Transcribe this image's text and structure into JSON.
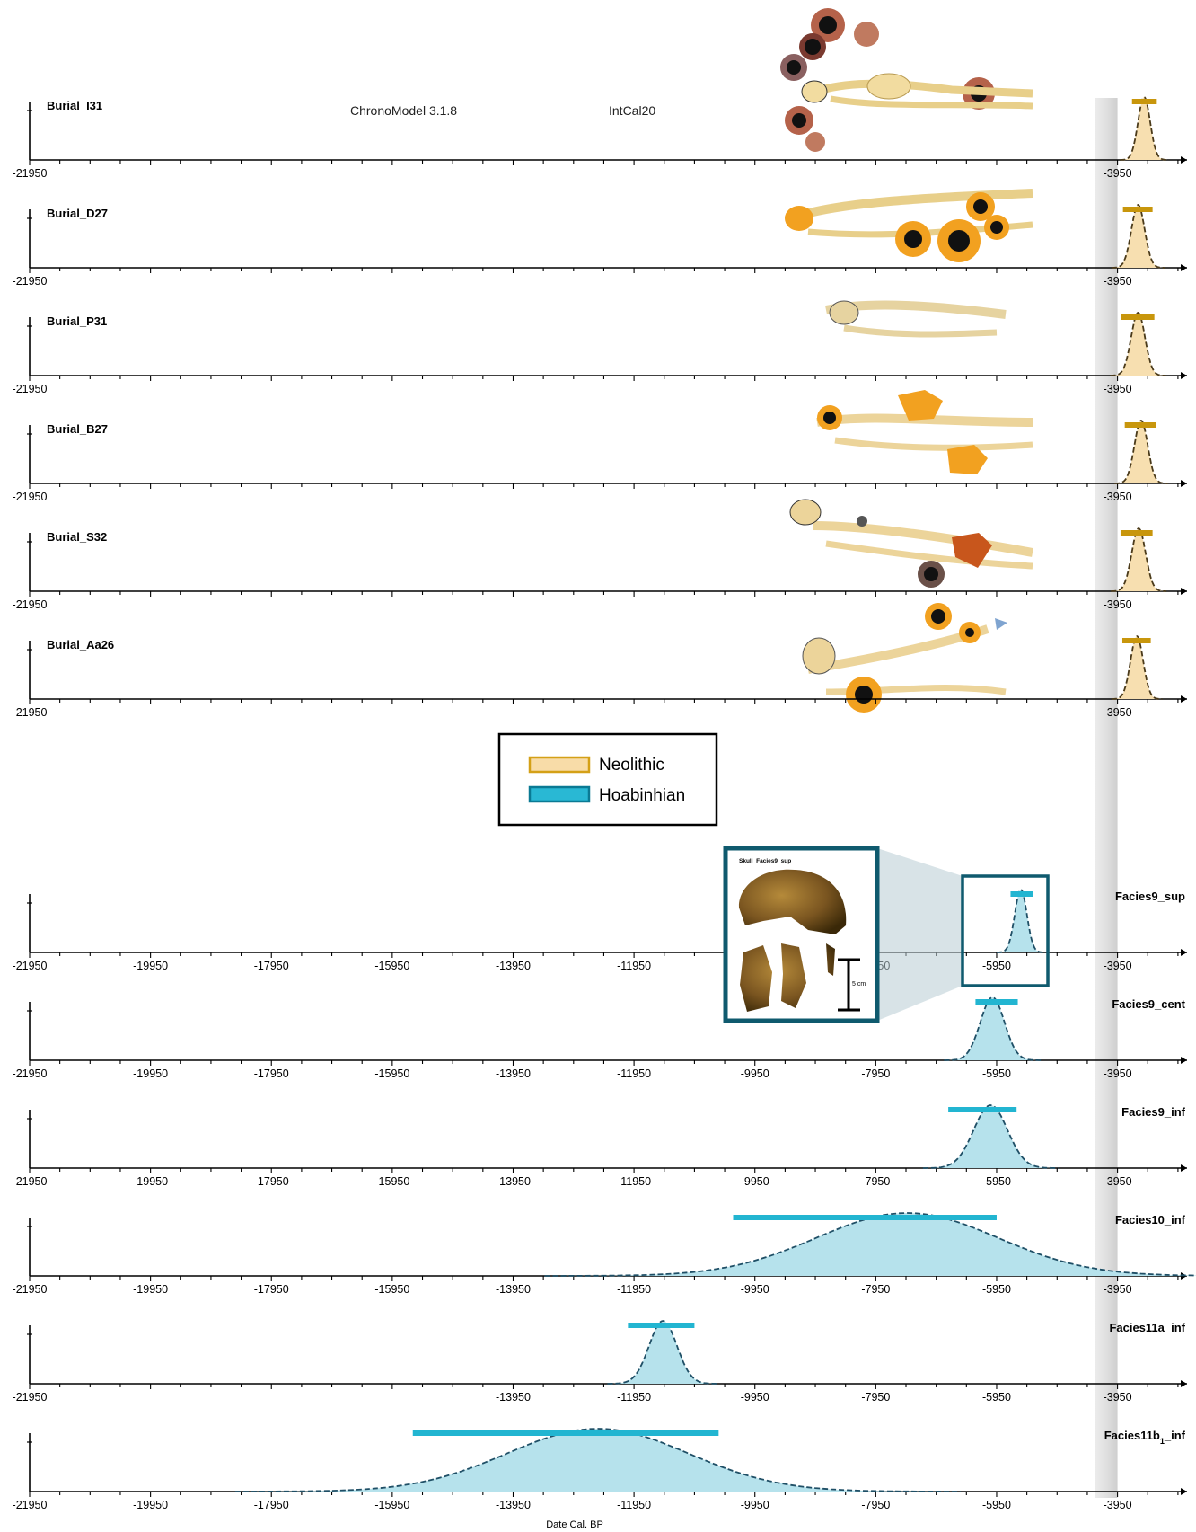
{
  "header": {
    "software": "ChronoModel 3.1.8",
    "calibration": "IntCal20"
  },
  "legend": {
    "items": [
      {
        "label": "Neolithic",
        "fill": "#f8dca8",
        "stroke": "#d4a017"
      },
      {
        "label": "Hoabinhian",
        "fill": "#29b8d4",
        "stroke": "#0a7a94"
      }
    ]
  },
  "inset": {
    "caption": "Skull_Facies9_sup",
    "scale_label": "5 cm"
  },
  "colors": {
    "neolithic_bar": "#c8960c",
    "neolithic_fill": "#f7dfb0",
    "hoabinhian_bar": "#22b5d1",
    "hoabinhian_fill": "#b6e2ec",
    "curve_neolithic": "#4a3a1a",
    "curve_hoabinhian": "#1f4f66",
    "band": "#cfcfcf",
    "inset_frame": "#0f5a6e"
  },
  "chart_data": {
    "type": "area",
    "xlabel": "Date Cal. BP",
    "xlim": [
      -21950,
      -2800
    ],
    "shaded_band": [
      -4330,
      -3950
    ],
    "series": [
      {
        "name": "Burial_I31",
        "group": "Neolithic",
        "mode": -3510,
        "sigma": 100,
        "hpd": [
          -3710,
          -3300
        ],
        "ticks": [
          -21950,
          -3950
        ]
      },
      {
        "name": "Burial_D27",
        "group": "Neolithic",
        "mode": -3610,
        "sigma": 110,
        "hpd": [
          -3860,
          -3370
        ],
        "ticks": [
          -21950,
          -3950
        ]
      },
      {
        "name": "Burial_P31",
        "group": "Neolithic",
        "mode": -3610,
        "sigma": 115,
        "hpd": [
          -3890,
          -3340
        ],
        "ticks": [
          -21950,
          -3950
        ]
      },
      {
        "name": "Burial_B27",
        "group": "Neolithic",
        "mode": -3560,
        "sigma": 110,
        "hpd": [
          -3830,
          -3320
        ],
        "ticks": [
          -21950,
          -3950
        ]
      },
      {
        "name": "Burial_S32",
        "group": "Neolithic",
        "mode": -3600,
        "sigma": 115,
        "hpd": [
          -3900,
          -3370
        ],
        "ticks": [
          -21950,
          -3950
        ]
      },
      {
        "name": "Burial_Aa26",
        "group": "Neolithic",
        "mode": -3630,
        "sigma": 105,
        "hpd": [
          -3870,
          -3400
        ],
        "ticks": [
          -21950,
          -3950
        ]
      },
      {
        "name": "Facies9_sup",
        "group": "Hoabinhian",
        "mode": -5550,
        "sigma": 100,
        "hpd": [
          -5720,
          -5350
        ],
        "ticks": [
          -21950,
          -19950,
          -17950,
          -15950,
          -13950,
          -11950,
          -9950,
          -7950,
          -5950,
          -3950
        ]
      },
      {
        "name": "Facies9_cent",
        "group": "Hoabinhian",
        "mode": -6020,
        "sigma": 200,
        "hpd": [
          -6300,
          -5600
        ],
        "ticks": [
          -21950,
          -19950,
          -17950,
          -15950,
          -13950,
          -11950,
          -9950,
          -7950,
          -5950,
          -3950
        ]
      },
      {
        "name": "Facies9_inf",
        "group": "Hoabinhian",
        "mode": -6050,
        "sigma": 280,
        "hpd": [
          -6750,
          -5620
        ],
        "ticks": [
          -21950,
          -19950,
          -17950,
          -15950,
          -13950,
          -11950,
          -9950,
          -7950,
          -5950,
          -3950
        ]
      },
      {
        "name": "Facies10_inf",
        "group": "Hoabinhian",
        "mode": -7430,
        "sigma": 1500,
        "hpd": [
          -10310,
          -5950
        ],
        "ticks": [
          -21950,
          -19950,
          -17950,
          -15950,
          -13950,
          -11950,
          -9950,
          -7950,
          -5950,
          -3950
        ]
      },
      {
        "name": "Facies11a_inf",
        "group": "Hoabinhian",
        "mode": -11470,
        "sigma": 230,
        "hpd": [
          -12050,
          -10950
        ],
        "ticks": [
          -21950,
          -13950,
          -11950,
          -9950,
          -7950,
          -5950,
          -3950
        ]
      },
      {
        "name": "Facies11b",
        "sub": "1",
        "suffix": "_inf",
        "group": "Hoabinhian",
        "mode": -12550,
        "sigma": 1500,
        "hpd": [
          -15610,
          -10550
        ],
        "ticks": [
          -21950,
          -19950,
          -17950,
          -15950,
          -13950,
          -11950,
          -9950,
          -7950,
          -5950,
          -3950
        ]
      }
    ]
  }
}
